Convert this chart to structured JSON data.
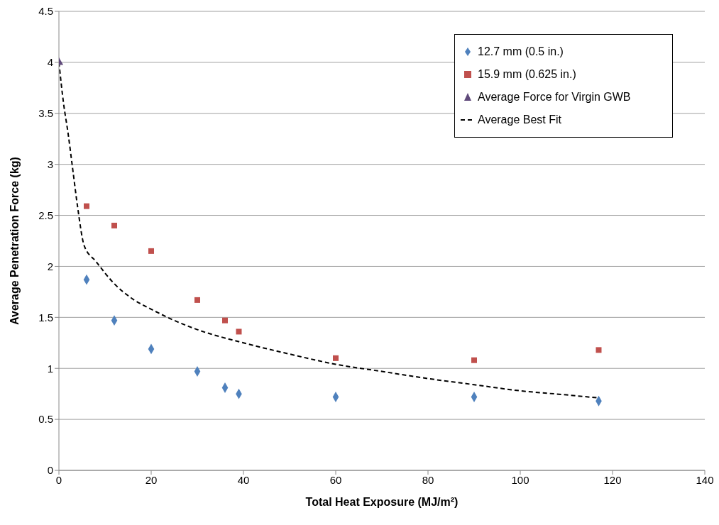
{
  "chart_data": {
    "type": "scatter",
    "xlabel": "Total Heat Exposure (MJ/m²)",
    "ylabel": "Average Penetration Force (kg)",
    "xlim": [
      0,
      140
    ],
    "xticks": [
      0,
      20,
      40,
      60,
      80,
      100,
      120,
      140
    ],
    "ylim": [
      0,
      4.5
    ],
    "yticks": [
      0,
      0.5,
      1,
      1.5,
      2,
      2.5,
      3,
      3.5,
      4,
      4.5
    ],
    "grid": "y",
    "legend": "top right",
    "series": [
      {
        "name": "12.7 mm (0.5 in.)",
        "marker": "diamond",
        "color": "#4f81bd",
        "x": [
          6,
          12,
          20,
          30,
          36,
          39,
          60,
          90,
          117
        ],
        "values": [
          1.87,
          1.47,
          1.19,
          0.97,
          0.81,
          0.75,
          0.72,
          0.72,
          0.68
        ]
      },
      {
        "name": "15.9 mm (0.625 in.)",
        "marker": "square",
        "color": "#c0504d",
        "x": [
          6,
          12,
          20,
          30,
          36,
          39,
          60,
          90,
          117
        ],
        "values": [
          2.59,
          2.4,
          2.15,
          1.67,
          1.47,
          1.36,
          1.1,
          1.08,
          1.18
        ]
      },
      {
        "name": "Average Force for Virgin GWB",
        "marker": "triangle",
        "color": "#604a7b",
        "x": [
          0
        ],
        "values": [
          4.0
        ]
      },
      {
        "name": "Average Best Fit",
        "type": "line",
        "marker": "none",
        "line_style": "dashed",
        "color": "#000000",
        "x": [
          0,
          1,
          2,
          3,
          4,
          5.5,
          8,
          12,
          16,
          20,
          25,
          30,
          40,
          50,
          60,
          70,
          80,
          90,
          100,
          110,
          117
        ],
        "values": [
          4.0,
          3.6,
          3.3,
          2.95,
          2.6,
          2.2,
          2.05,
          1.83,
          1.68,
          1.58,
          1.47,
          1.38,
          1.25,
          1.14,
          1.04,
          0.97,
          0.9,
          0.84,
          0.78,
          0.74,
          0.71
        ]
      }
    ]
  }
}
